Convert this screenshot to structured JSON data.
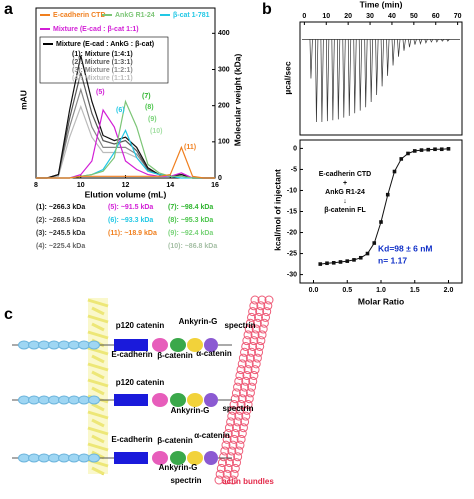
{
  "panel_labels": [
    "a",
    "b",
    "c"
  ],
  "chart_data": [
    {
      "type": "line",
      "x_label": "Elution volume (mL)",
      "y_label": "mAU",
      "y2_label": "Molecular weight (kDa)",
      "x": [
        8,
        8.5,
        9,
        9.5,
        10,
        10.5,
        11,
        11.5,
        12,
        12.5,
        13,
        13.5,
        14,
        14.5,
        15,
        15.5,
        16
      ],
      "xlim": [
        8,
        16
      ],
      "xticks": [
        8,
        10,
        12,
        14,
        16
      ],
      "ylim": [
        0,
        100
      ],
      "y2lim": [
        0,
        470
      ],
      "y2ticks": [
        0,
        100,
        200,
        300,
        400
      ],
      "legend_group_title": "Mixture (E-cad : AnkG : β-cat)",
      "series": [
        {
          "name": "E-cadherin CTD",
          "color": "#f07f1e",
          "values": [
            0,
            0,
            0,
            0,
            1,
            1,
            1,
            1,
            1,
            1,
            1,
            1,
            2,
            18,
            1,
            0,
            0
          ]
        },
        {
          "name": "AnkG R1-24",
          "color": "#7cc576",
          "values": [
            0,
            0,
            0,
            0,
            1,
            2,
            4,
            12,
            45,
            30,
            8,
            3,
            1,
            1,
            0,
            0,
            0
          ]
        },
        {
          "name": "β-cat 1-781",
          "color": "#22c8e5",
          "values": [
            0,
            0,
            0,
            0,
            1,
            2,
            5,
            15,
            28,
            12,
            4,
            2,
            1,
            0,
            0,
            0,
            0
          ]
        },
        {
          "name": "Mixture (E-cad : β-cat 1:1)",
          "color": "#d21fd6",
          "values": [
            0,
            0,
            0,
            0,
            2,
            10,
            40,
            30,
            10,
            5,
            2,
            1,
            1,
            3,
            0,
            0,
            0
          ]
        },
        {
          "name": "(1): Mixture (1:4:1)",
          "color": "#111111",
          "values": [
            0,
            0,
            2,
            40,
            72,
            45,
            25,
            22,
            24,
            18,
            6,
            2,
            1,
            2,
            0,
            0,
            0
          ]
        },
        {
          "name": "(2): Mixture (1:3:1)",
          "color": "#555555",
          "values": [
            0,
            0,
            2,
            35,
            62,
            38,
            22,
            20,
            22,
            16,
            5,
            2,
            1,
            2,
            0,
            0,
            0
          ]
        },
        {
          "name": "(3): Mixture (1:2:1)",
          "color": "#888888",
          "values": [
            0,
            0,
            2,
            30,
            52,
            30,
            18,
            18,
            18,
            14,
            5,
            2,
            1,
            2,
            0,
            0,
            0
          ]
        },
        {
          "name": "(4): Mixture (1:1:1)",
          "color": "#bbbbbb",
          "values": [
            0,
            0,
            1,
            24,
            42,
            24,
            15,
            15,
            15,
            12,
            4,
            2,
            1,
            2,
            0,
            0,
            0
          ]
        }
      ],
      "peak_labels": [
        {
          "text": "(5)",
          "color": "#d21fd6"
        },
        {
          "text": "(6)",
          "color": "#22c8e5"
        },
        {
          "text": "(7)",
          "color": "#2fb52f"
        },
        {
          "text": "(8)",
          "color": "#4cc54c"
        },
        {
          "text": "(9)",
          "color": "#79d379"
        },
        {
          "text": "(10)",
          "color": "#a6e0a6"
        },
        {
          "text": "(11)",
          "color": "#f07f1e"
        }
      ],
      "mw_labels": [
        {
          "text": "(1): ~266.3 kDa",
          "color": "#111111"
        },
        {
          "text": "(2): ~268.5 kDa",
          "color": "#444444"
        },
        {
          "text": "(3): ~245.5 kDa",
          "color": "#333333"
        },
        {
          "text": "(4): ~225.4 kDa",
          "color": "#666666"
        },
        {
          "text": "(5): ~91.5 kDa",
          "color": "#d21fd6"
        },
        {
          "text": "(6): ~93.3 kDa",
          "color": "#22c8e5"
        },
        {
          "text": "(11): ~18.9 kDa",
          "color": "#f07f1e"
        },
        {
          "text": "(7): ~98.4 kDa",
          "color": "#2fb52f"
        },
        {
          "text": "(8): ~95.3 kDa",
          "color": "#4cc54c"
        },
        {
          "text": "(9): ~92.4 kDa",
          "color": "#79d379"
        },
        {
          "text": "(10): ~86.8 kDa",
          "color": "#a6c0a6"
        }
      ]
    },
    {
      "type": "thermogram",
      "x_label": "Time (min)",
      "y_label": "µcal/sec",
      "xlim": [
        -2,
        72
      ],
      "xticks": [
        0,
        10,
        20,
        30,
        40,
        50,
        60,
        70
      ],
      "ylim": [
        -1.1,
        0.2
      ],
      "color": "#333333",
      "x": [
        3,
        5.5,
        8,
        10.5,
        13,
        15.5,
        18,
        20.5,
        23,
        25.5,
        28,
        30.5,
        33,
        35.5,
        38,
        40.5,
        43,
        45.5,
        48,
        50.5,
        53,
        55.5,
        58,
        60.5,
        63,
        65.5
      ],
      "values": [
        -0.45,
        -0.95,
        -0.95,
        -0.94,
        -0.93,
        -0.92,
        -0.9,
        -0.88,
        -0.85,
        -0.82,
        -0.78,
        -0.72,
        -0.64,
        -0.54,
        -0.42,
        -0.3,
        -0.2,
        -0.13,
        -0.09,
        -0.06,
        -0.05,
        -0.04,
        -0.03,
        -0.03,
        -0.02,
        -0.02
      ]
    },
    {
      "type": "scatter",
      "x_label": "Molar Ratio",
      "y_label": "kcal/mol of injectant",
      "xlim": [
        -0.2,
        2.2
      ],
      "xticks": [
        {
          "value": 0,
          "label": "0.0"
        },
        0.5,
        {
          "value": 1,
          "label": "1.0"
        },
        1.5,
        {
          "value": 2,
          "label": "2.0"
        }
      ],
      "ylim": [
        -32,
        2
      ],
      "yticks": [
        0,
        -5,
        -10,
        -15,
        -20,
        -25,
        -30
      ],
      "color": "#111111",
      "x": [
        0.1,
        0.2,
        0.3,
        0.4,
        0.5,
        0.6,
        0.7,
        0.8,
        0.9,
        1.0,
        1.1,
        1.2,
        1.3,
        1.4,
        1.5,
        1.6,
        1.7,
        1.8,
        1.9,
        2.0
      ],
      "values": [
        -27.5,
        -27.3,
        -27.2,
        -27,
        -26.8,
        -26.5,
        -26,
        -25,
        -22.5,
        -17.5,
        -11,
        -5.5,
        -2.5,
        -1.2,
        -0.6,
        -0.4,
        -0.3,
        -0.2,
        -0.2,
        -0.1
      ],
      "annotations": [
        "E-cadherin CTD",
        "+",
        "AnkG R1-24",
        "↓",
        "β-catenin FL"
      ],
      "kd": "Kd=98 ± 6 nM",
      "n": "n= 1.17"
    }
  ],
  "diagram": {
    "e_cadherin": "E-cadherin",
    "p120": "p120 catenin",
    "ankyrin": "Ankyrin-G",
    "spectrin": "spectrin",
    "beta": "β-catenin",
    "alpha": "α-catenin",
    "actin": "actin bundles"
  }
}
